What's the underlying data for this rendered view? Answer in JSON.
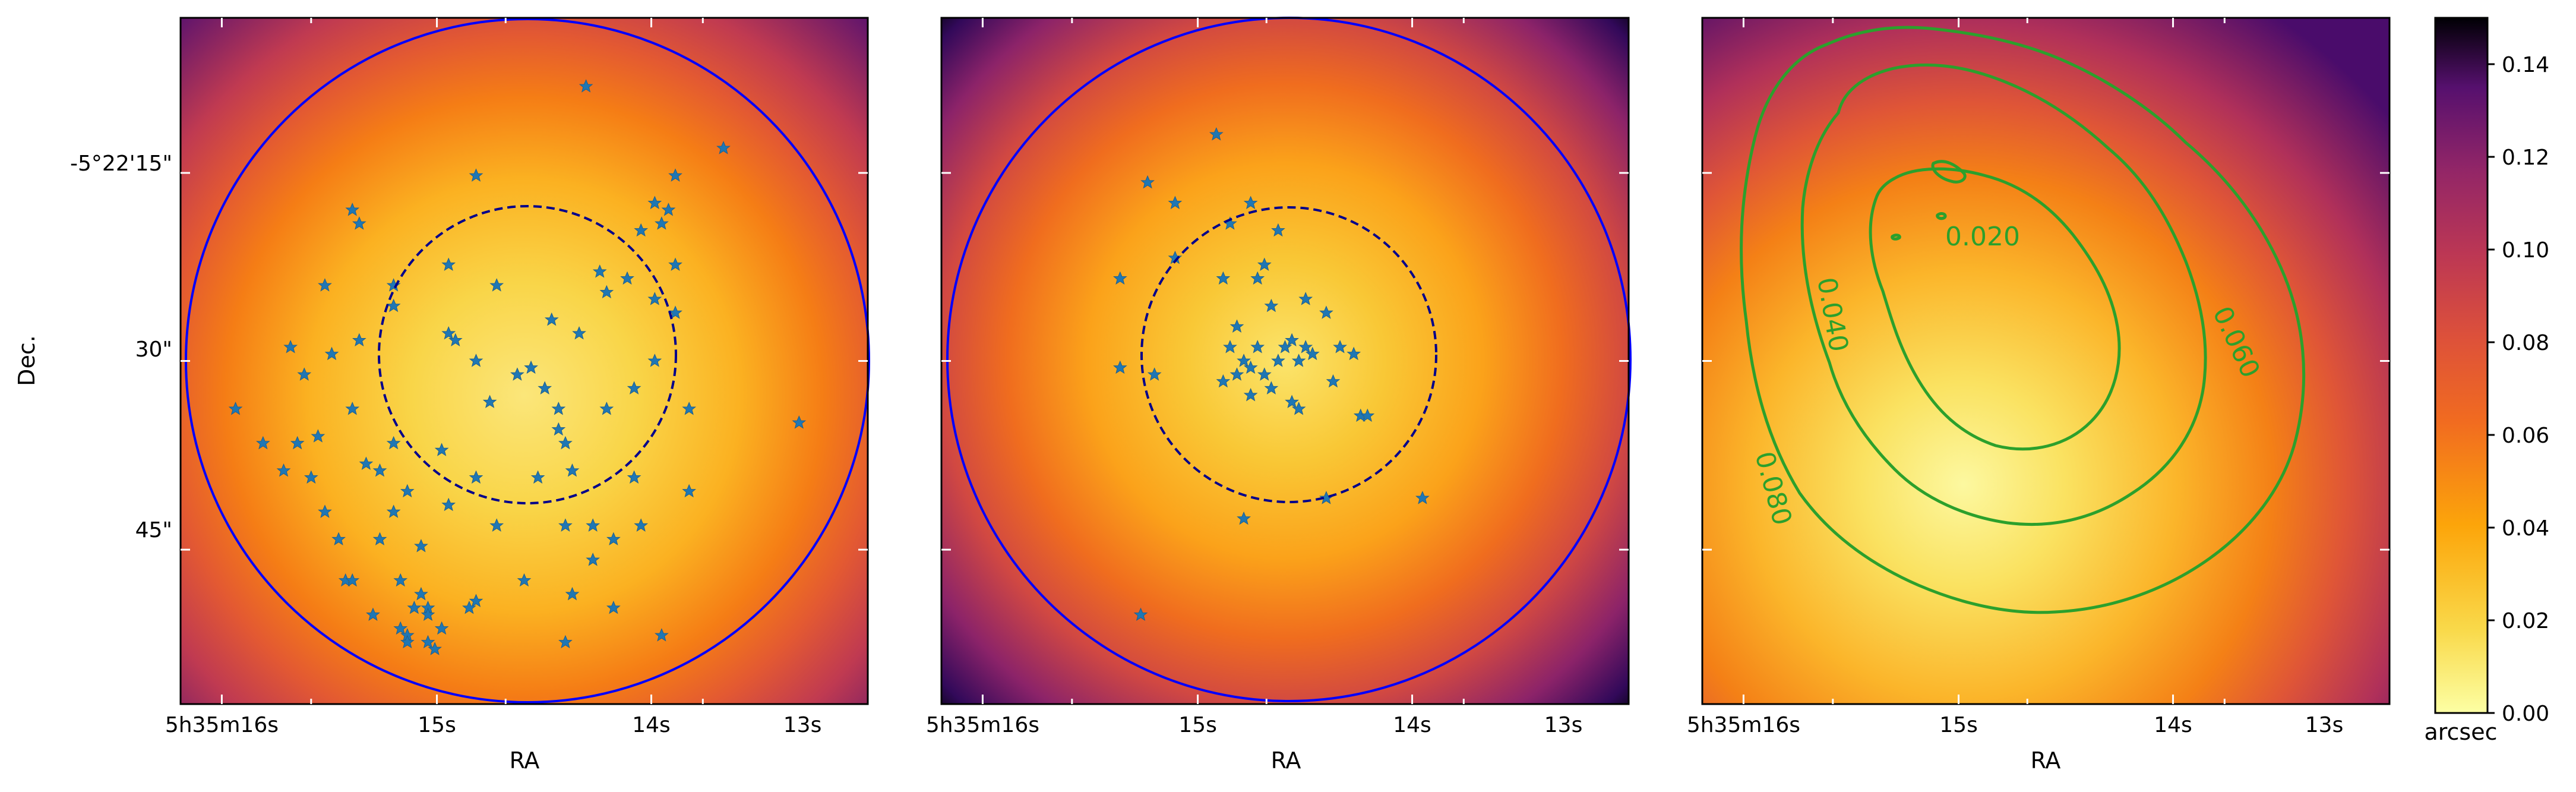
{
  "figure": {
    "ylabel": "Dec.",
    "colorbar": {
      "label": "arcsec",
      "ticks": [
        "0.00",
        "0.02",
        "0.04",
        "0.06",
        "0.08",
        "0.10",
        "0.12",
        "0.14"
      ],
      "range": [
        0.0,
        0.15
      ]
    }
  },
  "chart_data": [
    {
      "type": "heatmap",
      "panel": "left",
      "xlabel": "RA",
      "ylabel": "Dec.",
      "x_ticks": [
        "5h35m16s",
        "15s",
        "14s",
        "13s"
      ],
      "y_ticks": [
        "-5°22'15\"",
        "30\"",
        "45\""
      ],
      "circles": [
        {
          "style": "solid",
          "color": "#0000ff"
        },
        {
          "style": "dashed",
          "color": "#00008b"
        }
      ],
      "stars": [
        [
          0.59,
          0.1
        ],
        [
          0.79,
          0.19
        ],
        [
          0.72,
          0.23
        ],
        [
          0.43,
          0.23
        ],
        [
          0.69,
          0.27
        ],
        [
          0.71,
          0.28
        ],
        [
          0.25,
          0.28
        ],
        [
          0.7,
          0.3
        ],
        [
          0.26,
          0.3
        ],
        [
          0.67,
          0.31
        ],
        [
          0.72,
          0.36
        ],
        [
          0.39,
          0.36
        ],
        [
          0.61,
          0.37
        ],
        [
          0.65,
          0.38
        ],
        [
          0.21,
          0.39
        ],
        [
          0.31,
          0.39
        ],
        [
          0.46,
          0.39
        ],
        [
          0.62,
          0.4
        ],
        [
          0.69,
          0.41
        ],
        [
          0.31,
          0.42
        ],
        [
          0.72,
          0.43
        ],
        [
          0.54,
          0.44
        ],
        [
          0.39,
          0.46
        ],
        [
          0.58,
          0.46
        ],
        [
          0.4,
          0.47
        ],
        [
          0.26,
          0.47
        ],
        [
          0.16,
          0.48
        ],
        [
          0.22,
          0.49
        ],
        [
          0.43,
          0.5
        ],
        [
          0.69,
          0.5
        ],
        [
          0.51,
          0.51
        ],
        [
          0.49,
          0.52
        ],
        [
          0.18,
          0.52
        ],
        [
          0.45,
          0.56
        ],
        [
          0.53,
          0.54
        ],
        [
          0.66,
          0.54
        ],
        [
          0.55,
          0.57
        ],
        [
          0.08,
          0.57
        ],
        [
          0.62,
          0.57
        ],
        [
          0.25,
          0.57
        ],
        [
          0.74,
          0.57
        ],
        [
          0.56,
          0.62
        ],
        [
          0.2,
          0.61
        ],
        [
          0.17,
          0.62
        ],
        [
          0.12,
          0.62
        ],
        [
          0.55,
          0.6
        ],
        [
          0.31,
          0.62
        ],
        [
          0.38,
          0.63
        ],
        [
          0.15,
          0.66
        ],
        [
          0.27,
          0.65
        ],
        [
          0.19,
          0.67
        ],
        [
          0.33,
          0.69
        ],
        [
          0.29,
          0.66
        ],
        [
          0.43,
          0.67
        ],
        [
          0.57,
          0.66
        ],
        [
          0.66,
          0.67
        ],
        [
          0.52,
          0.67
        ],
        [
          0.74,
          0.69
        ],
        [
          0.39,
          0.71
        ],
        [
          0.31,
          0.72
        ],
        [
          0.21,
          0.72
        ],
        [
          0.23,
          0.76
        ],
        [
          0.56,
          0.74
        ],
        [
          0.6,
          0.74
        ],
        [
          0.67,
          0.74
        ],
        [
          0.29,
          0.76
        ],
        [
          0.46,
          0.74
        ],
        [
          0.63,
          0.76
        ],
        [
          0.35,
          0.77
        ],
        [
          0.6,
          0.79
        ],
        [
          0.5,
          0.82
        ],
        [
          0.57,
          0.84
        ],
        [
          0.43,
          0.85
        ],
        [
          0.35,
          0.84
        ],
        [
          0.36,
          0.86
        ],
        [
          0.24,
          0.82
        ],
        [
          0.25,
          0.82
        ],
        [
          0.32,
          0.82
        ],
        [
          0.42,
          0.86
        ],
        [
          0.36,
          0.87
        ],
        [
          0.38,
          0.89
        ],
        [
          0.7,
          0.9
        ],
        [
          0.56,
          0.91
        ],
        [
          0.28,
          0.87
        ],
        [
          0.32,
          0.89
        ],
        [
          0.33,
          0.9
        ],
        [
          0.36,
          0.91
        ],
        [
          0.37,
          0.92
        ],
        [
          0.63,
          0.86
        ],
        [
          0.9,
          0.59
        ],
        [
          0.33,
          0.91
        ],
        [
          0.34,
          0.86
        ]
      ]
    },
    {
      "type": "heatmap",
      "panel": "middle",
      "xlabel": "RA",
      "x_ticks": [
        "5h35m16s",
        "15s",
        "14s",
        "13s"
      ],
      "circles": [
        {
          "style": "solid",
          "color": "#0000ff"
        },
        {
          "style": "dashed",
          "color": "#00008b"
        }
      ],
      "stars": [
        [
          0.4,
          0.17
        ],
        [
          0.3,
          0.24
        ],
        [
          0.34,
          0.27
        ],
        [
          0.45,
          0.27
        ],
        [
          0.42,
          0.3
        ],
        [
          0.49,
          0.31
        ],
        [
          0.34,
          0.35
        ],
        [
          0.47,
          0.36
        ],
        [
          0.41,
          0.38
        ],
        [
          0.46,
          0.38
        ],
        [
          0.53,
          0.41
        ],
        [
          0.48,
          0.42
        ],
        [
          0.56,
          0.43
        ],
        [
          0.26,
          0.38
        ],
        [
          0.43,
          0.45
        ],
        [
          0.51,
          0.47
        ],
        [
          0.53,
          0.48
        ],
        [
          0.42,
          0.48
        ],
        [
          0.46,
          0.48
        ],
        [
          0.44,
          0.5
        ],
        [
          0.5,
          0.48
        ],
        [
          0.54,
          0.49
        ],
        [
          0.58,
          0.48
        ],
        [
          0.45,
          0.51
        ],
        [
          0.49,
          0.5
        ],
        [
          0.52,
          0.5
        ],
        [
          0.43,
          0.52
        ],
        [
          0.47,
          0.52
        ],
        [
          0.6,
          0.49
        ],
        [
          0.26,
          0.51
        ],
        [
          0.31,
          0.52
        ],
        [
          0.41,
          0.53
        ],
        [
          0.57,
          0.53
        ],
        [
          0.48,
          0.54
        ],
        [
          0.45,
          0.55
        ],
        [
          0.51,
          0.56
        ],
        [
          0.52,
          0.57
        ],
        [
          0.61,
          0.58
        ],
        [
          0.62,
          0.58
        ],
        [
          0.7,
          0.7
        ],
        [
          0.56,
          0.7
        ],
        [
          0.44,
          0.73
        ],
        [
          0.29,
          0.87
        ]
      ]
    },
    {
      "type": "heatmap",
      "panel": "right",
      "xlabel": "RA",
      "x_ticks": [
        "5h35m16s",
        "15s",
        "14s",
        "13s"
      ],
      "contours": [
        {
          "label": "0.020",
          "color": "#2ca02c"
        },
        {
          "label": "0.040",
          "color": "#2ca02c"
        },
        {
          "label": "0.060",
          "color": "#2ca02c"
        },
        {
          "label": "0.080",
          "color": "#2ca02c"
        }
      ]
    }
  ]
}
